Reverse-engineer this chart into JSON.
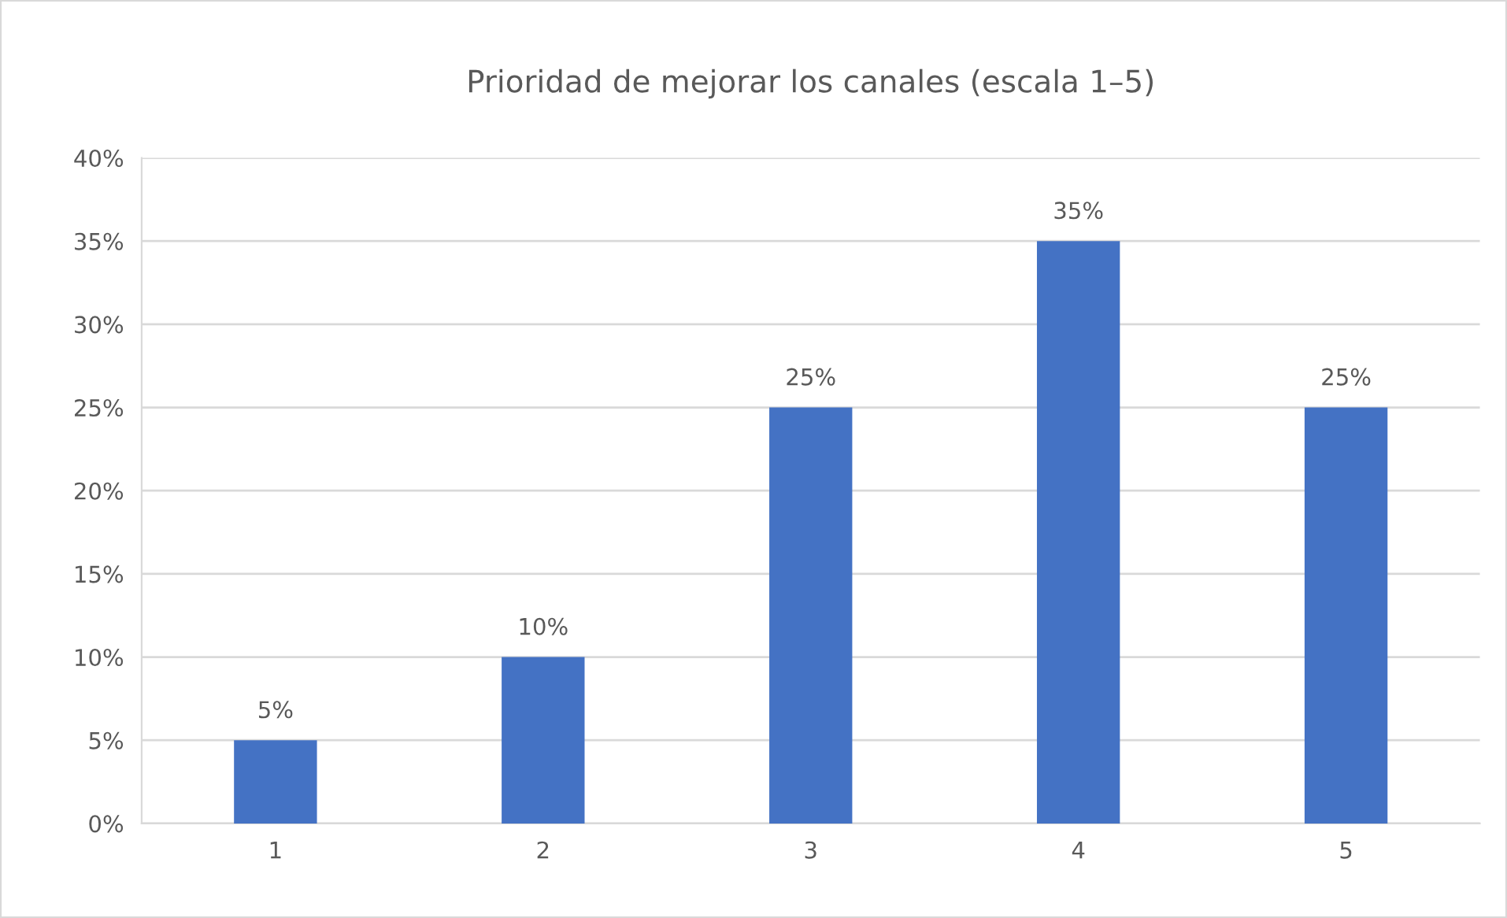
{
  "chart_data": {
    "type": "bar",
    "title": "Prioridad de mejorar los canales (escala 1–5)",
    "categories": [
      "1",
      "2",
      "3",
      "4",
      "5"
    ],
    "values": [
      5,
      10,
      25,
      35,
      25
    ],
    "value_labels": [
      "5%",
      "10%",
      "25%",
      "35%",
      "25%"
    ],
    "color": "#4472c4",
    "ylim": [
      0,
      40
    ],
    "yticks": [
      {
        "value": 0,
        "label": "0%"
      },
      {
        "value": 5,
        "label": "5%"
      },
      {
        "value": 10,
        "label": "10%"
      },
      {
        "value": 15,
        "label": "15%"
      },
      {
        "value": 20,
        "label": "20%"
      },
      {
        "value": 25,
        "label": "25%"
      },
      {
        "value": 30,
        "label": "30%"
      },
      {
        "value": 35,
        "label": "35%"
      },
      {
        "value": 40,
        "label": "40%"
      }
    ],
    "grid": "y",
    "legend": false
  }
}
